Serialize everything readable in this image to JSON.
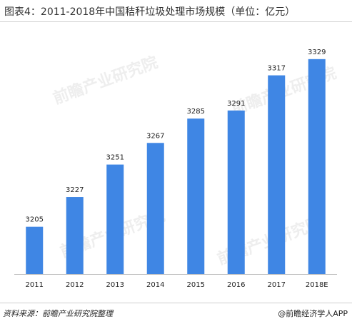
{
  "title": "图表4：2011-2018年中国秸秆垃圾处理市场规模（单位：亿元）",
  "footer": {
    "source": "资料来源：前瞻产业研究院整理",
    "credit": "@前瞻经济学人APP"
  },
  "watermark": "前瞻产业研究院",
  "colors": {
    "bar": "#3f86e4",
    "axis": "#bfbfbf",
    "label": "#222222"
  },
  "chart_data": {
    "type": "bar",
    "title": "图表4：2011-2018年中国秸秆垃圾处理市场规模（单位：亿元）",
    "xlabel": "",
    "ylabel": "",
    "categories": [
      "2011",
      "2012",
      "2013",
      "2014",
      "2015",
      "2016",
      "2017",
      "2018E"
    ],
    "values": [
      3205,
      3227,
      3251,
      3267,
      3285,
      3291,
      3317,
      3329
    ],
    "ylim": [
      3170,
      3340
    ],
    "grid": false,
    "legend": "none"
  }
}
